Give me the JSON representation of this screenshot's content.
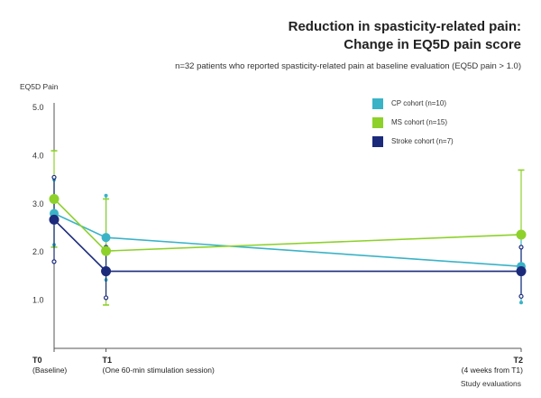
{
  "chart_data": {
    "type": "line",
    "title_line1": "Reduction in spasticity-related pain:",
    "title_line2": "Change in EQ5D pain score",
    "subtitle": "n=32 patients who reported spasticity-related pain at baseline evaluation (EQ5D pain > 1.0)",
    "ylabel": "EQ5D Pain",
    "xlabel": "Study evaluations",
    "ylim": [
      0,
      5
    ],
    "yticks": [
      "5.0",
      "4.0",
      "3.0",
      "2.0",
      "1.0"
    ],
    "ytick_values": [
      5,
      4,
      3,
      2,
      1
    ],
    "categories": [
      {
        "label": "T0",
        "sublabel": "(Baseline)",
        "x": 0
      },
      {
        "label": "T1",
        "sublabel": "(One 60-min stimulation session)",
        "x": 1
      },
      {
        "label": "T2",
        "sublabel": "(4 weeks from T1)",
        "x": 9
      }
    ],
    "series": [
      {
        "name": "CP cohort (n=10)",
        "color": "#3ab3c7",
        "values": [
          2.8,
          2.3,
          1.7
        ],
        "err_low": [
          2.15,
          1.42,
          0.95
        ],
        "err_high": [
          3.5,
          3.17,
          2.3
        ]
      },
      {
        "name": "MS cohort (n=15)",
        "color": "#8dd12a",
        "values": [
          3.1,
          2.02,
          2.36
        ],
        "err_low": [
          2.1,
          0.9,
          null
        ],
        "err_high": [
          4.1,
          3.1,
          3.7
        ]
      },
      {
        "name": "Stroke cohort (n=7)",
        "color": "#1b2a7b",
        "values": [
          2.67,
          1.6,
          1.6
        ],
        "err_low": [
          1.8,
          1.05,
          1.08
        ],
        "err_high": [
          3.55,
          2.1,
          2.1
        ]
      }
    ]
  }
}
